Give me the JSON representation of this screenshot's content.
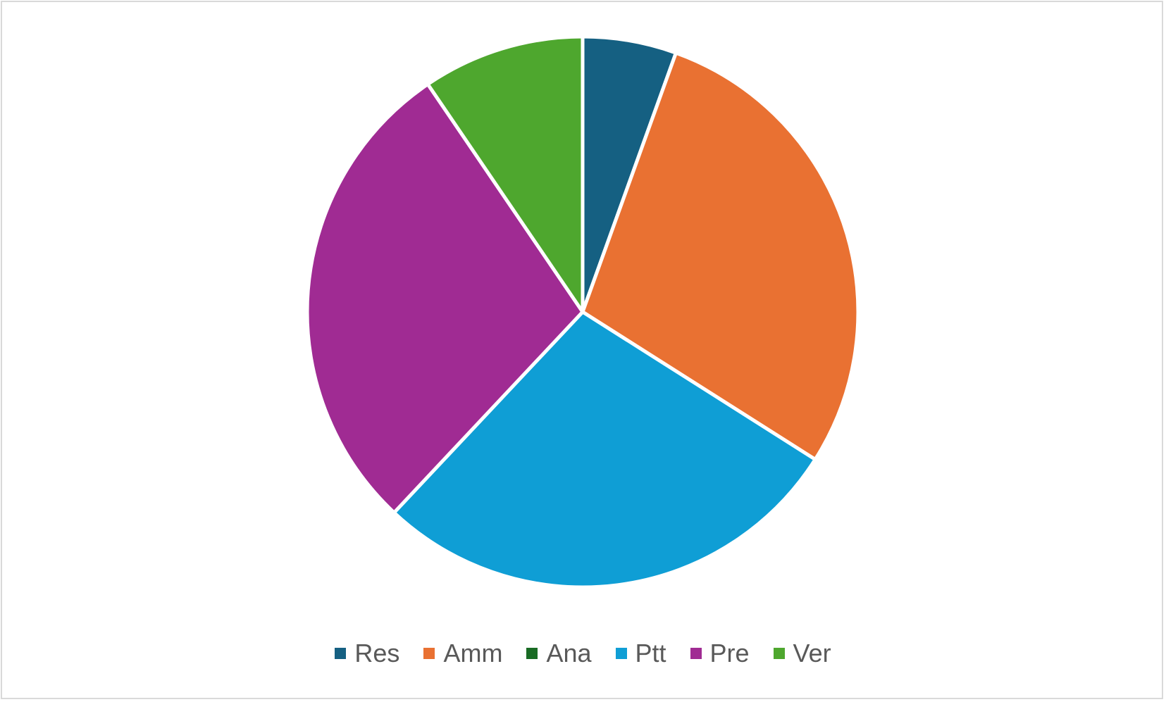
{
  "chart_data": {
    "type": "pie",
    "title": "",
    "categories": [
      "Res",
      "Amm",
      "Ana",
      "Ptt",
      "Pre",
      "Ver"
    ],
    "values": [
      5.5,
      28.5,
      0,
      28.0,
      28.5,
      9.5
    ],
    "colors": [
      "#156082",
      "#E97132",
      "#196B24",
      "#0F9ED5",
      "#A02B93",
      "#4EA72E"
    ],
    "start_angle_deg": 0,
    "direction": "clockwise",
    "legend_position": "bottom",
    "slice_border_color": "#ffffff"
  }
}
